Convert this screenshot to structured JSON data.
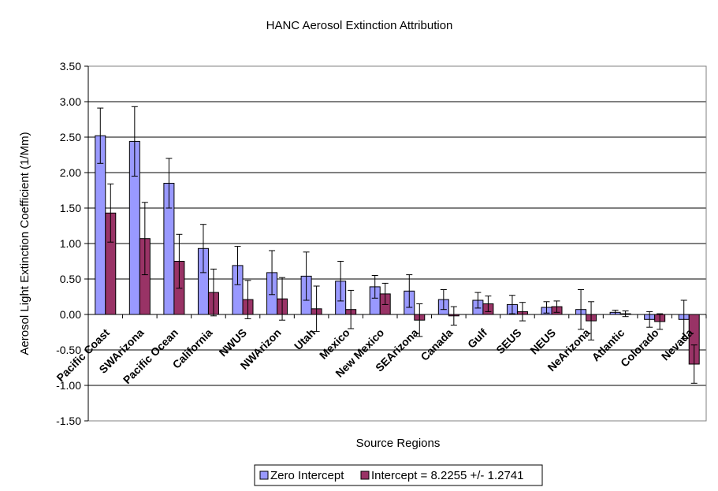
{
  "chart_data": {
    "type": "bar",
    "title": "HANC Aerosol Extinction Attribution",
    "xlabel": "Source Regions",
    "ylabel": "Aerosol Light Extinction Coefficient (1/Mm)",
    "ylim": [
      -1.5,
      3.5
    ],
    "yticks": [
      -1.5,
      -1.0,
      -0.5,
      0.0,
      0.5,
      1.0,
      1.5,
      2.0,
      2.5,
      3.0,
      3.5
    ],
    "ytick_labels": [
      "-1.50",
      "-1.00",
      "-0.50",
      "0.00",
      "0.50",
      "1.00",
      "1.50",
      "2.00",
      "2.50",
      "3.00",
      "3.50"
    ],
    "grid": true,
    "legend_position": "bottom",
    "categories": [
      "Pacific Coast",
      "SWArizona",
      "Pacific Ocean",
      "California",
      "NWUS",
      "NWArizon",
      "Utah",
      "Mexico",
      "New Mexico",
      "SEArizona",
      "Canada",
      "Gulf",
      "SEUS",
      "NEUS",
      "NeArizona",
      "Atlantic",
      "Colorado",
      "Nevada"
    ],
    "series": [
      {
        "name": "Zero Intercept",
        "color": "#9999ff",
        "values": [
          2.52,
          2.44,
          1.85,
          0.93,
          0.69,
          0.59,
          0.54,
          0.47,
          0.39,
          0.33,
          0.21,
          0.2,
          0.14,
          0.1,
          0.07,
          0.03,
          -0.07,
          -0.07
        ],
        "errors": [
          0.39,
          0.49,
          0.35,
          0.34,
          0.27,
          0.31,
          0.34,
          0.28,
          0.16,
          0.23,
          0.14,
          0.11,
          0.13,
          0.08,
          0.28,
          0.03,
          0.11,
          0.27
        ]
      },
      {
        "name": "Intercept = 8.2255 +/- 1.2741",
        "color": "#993366",
        "values": [
          1.43,
          1.07,
          0.75,
          0.31,
          0.21,
          0.22,
          0.08,
          0.07,
          0.29,
          -0.08,
          -0.02,
          0.15,
          0.04,
          0.11,
          -0.09,
          0.01,
          -0.1,
          -0.7
        ],
        "errors": [
          0.41,
          0.51,
          0.38,
          0.33,
          0.27,
          0.3,
          0.32,
          0.27,
          0.15,
          0.23,
          0.13,
          0.11,
          0.13,
          0.08,
          0.27,
          0.04,
          0.11,
          0.27
        ]
      }
    ]
  }
}
